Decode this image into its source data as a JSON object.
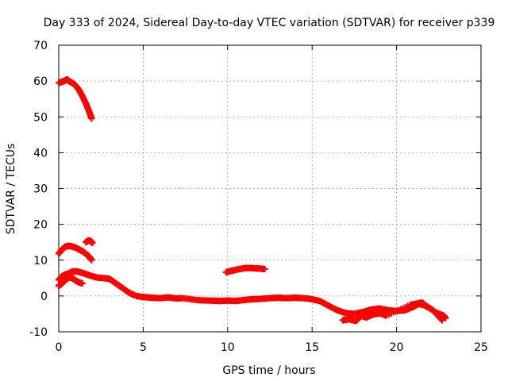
{
  "chart_data": {
    "type": "scatter",
    "title": "Day 333 of 2024, Sidereal Day-to-day VTEC variation (SDTVAR) for receiver p339",
    "xlabel": "GPS time / hours",
    "ylabel": "SDTVAR / TECUs",
    "xlim": [
      0,
      25
    ],
    "ylim": [
      -10,
      70
    ],
    "xticks": [
      0,
      5,
      10,
      15,
      20,
      25
    ],
    "yticks": [
      -10,
      0,
      10,
      20,
      30,
      40,
      50,
      60,
      70
    ],
    "grid": true,
    "marker": "+",
    "series": [
      {
        "name": "track-high-1",
        "color": "#ff0000",
        "points": [
          [
            0.0,
            59.5
          ],
          [
            0.2,
            59.8
          ],
          [
            0.4,
            60.2
          ],
          [
            0.5,
            60.5
          ],
          [
            0.6,
            60.0
          ],
          [
            0.8,
            59.5
          ],
          [
            1.0,
            58.8
          ],
          [
            1.2,
            57.5
          ],
          [
            1.4,
            55.8
          ],
          [
            1.6,
            53.8
          ],
          [
            1.8,
            51.5
          ],
          [
            1.95,
            49.5
          ]
        ]
      },
      {
        "name": "track-mid-1",
        "color": "#ff0000",
        "points": [
          [
            0.0,
            11.8
          ],
          [
            0.2,
            13.0
          ],
          [
            0.4,
            13.8
          ],
          [
            0.6,
            14.0
          ],
          [
            0.8,
            13.8
          ],
          [
            1.0,
            13.5
          ],
          [
            1.2,
            13.0
          ],
          [
            1.4,
            12.5
          ],
          [
            1.6,
            11.8
          ],
          [
            1.8,
            11.0
          ],
          [
            1.95,
            10.0
          ]
        ]
      },
      {
        "name": "track-mid-2",
        "color": "#ff0000",
        "points": [
          [
            1.6,
            15.0
          ],
          [
            1.75,
            15.5
          ],
          [
            1.9,
            15.3
          ],
          [
            2.0,
            14.8
          ]
        ]
      },
      {
        "name": "track-low-1",
        "color": "#ff0000",
        "points": [
          [
            0.0,
            4.5
          ],
          [
            0.2,
            5.5
          ],
          [
            0.4,
            6.0
          ],
          [
            0.6,
            6.3
          ],
          [
            0.8,
            6.8
          ],
          [
            1.0,
            6.9
          ],
          [
            1.2,
            6.7
          ],
          [
            1.5,
            6.3
          ],
          [
            1.8,
            5.8
          ],
          [
            2.2,
            5.2
          ],
          [
            2.6,
            5.0
          ],
          [
            3.0,
            4.8
          ],
          [
            3.3,
            3.8
          ],
          [
            3.6,
            2.8
          ],
          [
            3.9,
            1.8
          ],
          [
            4.2,
            0.8
          ],
          [
            4.5,
            0.2
          ]
        ]
      },
      {
        "name": "track-low-2",
        "color": "#ff0000",
        "points": [
          [
            0.0,
            2.8
          ],
          [
            0.2,
            3.5
          ],
          [
            0.4,
            4.5
          ],
          [
            0.6,
            5.2
          ],
          [
            0.8,
            5.0
          ],
          [
            1.0,
            4.3
          ],
          [
            1.2,
            3.8
          ],
          [
            1.4,
            3.5
          ]
        ]
      },
      {
        "name": "track-main",
        "color": "#ff0000",
        "points": [
          [
            4.6,
            0.0
          ],
          [
            5.0,
            -0.3
          ],
          [
            5.5,
            -0.5
          ],
          [
            6.0,
            -0.6
          ],
          [
            6.5,
            -0.4
          ],
          [
            7.0,
            -0.7
          ],
          [
            7.3,
            -0.6
          ],
          [
            8.3,
            -1.2
          ],
          [
            9.0,
            -1.3
          ],
          [
            9.5,
            -1.4
          ],
          [
            10.0,
            -1.3
          ],
          [
            10.5,
            -1.4
          ],
          [
            11.0,
            -1.1
          ],
          [
            11.5,
            -0.9
          ],
          [
            12.0,
            -0.8
          ],
          [
            12.5,
            -0.6
          ],
          [
            13.0,
            -0.5
          ],
          [
            13.5,
            -0.6
          ],
          [
            14.0,
            -0.5
          ],
          [
            14.5,
            -0.6
          ],
          [
            15.0,
            -0.9
          ],
          [
            15.5,
            -1.5
          ],
          [
            16.0,
            -2.8
          ],
          [
            16.5,
            -4.0
          ],
          [
            17.0,
            -4.8
          ],
          [
            17.5,
            -5.0
          ],
          [
            18.0,
            -4.5
          ],
          [
            18.5,
            -3.8
          ],
          [
            19.0,
            -3.5
          ],
          [
            19.5,
            -4.0
          ],
          [
            20.0,
            -4.2
          ],
          [
            20.5,
            -4.0
          ],
          [
            21.0,
            -3.0
          ],
          [
            21.3,
            -2.2
          ],
          [
            21.6,
            -2.5
          ],
          [
            22.0,
            -3.5
          ],
          [
            22.4,
            -4.8
          ],
          [
            22.8,
            -5.5
          ],
          [
            22.9,
            -6.2
          ]
        ]
      },
      {
        "name": "track-main-scatter",
        "color": "#ff0000",
        "points": [
          [
            16.8,
            -6.8
          ],
          [
            17.2,
            -6.5
          ],
          [
            17.6,
            -7.0
          ],
          [
            17.9,
            -5.5
          ],
          [
            18.2,
            -6.0
          ],
          [
            18.6,
            -5.2
          ],
          [
            19.0,
            -4.8
          ],
          [
            19.4,
            -5.5
          ],
          [
            20.8,
            -2.5
          ],
          [
            21.5,
            -1.8
          ],
          [
            22.2,
            -4.2
          ],
          [
            22.7,
            -6.8
          ]
        ]
      },
      {
        "name": "track-bump",
        "color": "#ff0000",
        "points": [
          [
            9.9,
            6.6
          ],
          [
            10.2,
            7.0
          ],
          [
            10.5,
            7.3
          ],
          [
            10.8,
            7.6
          ],
          [
            11.1,
            7.8
          ],
          [
            11.4,
            7.8
          ],
          [
            11.7,
            7.7
          ],
          [
            12.0,
            7.6
          ],
          [
            12.2,
            7.5
          ]
        ]
      }
    ]
  }
}
